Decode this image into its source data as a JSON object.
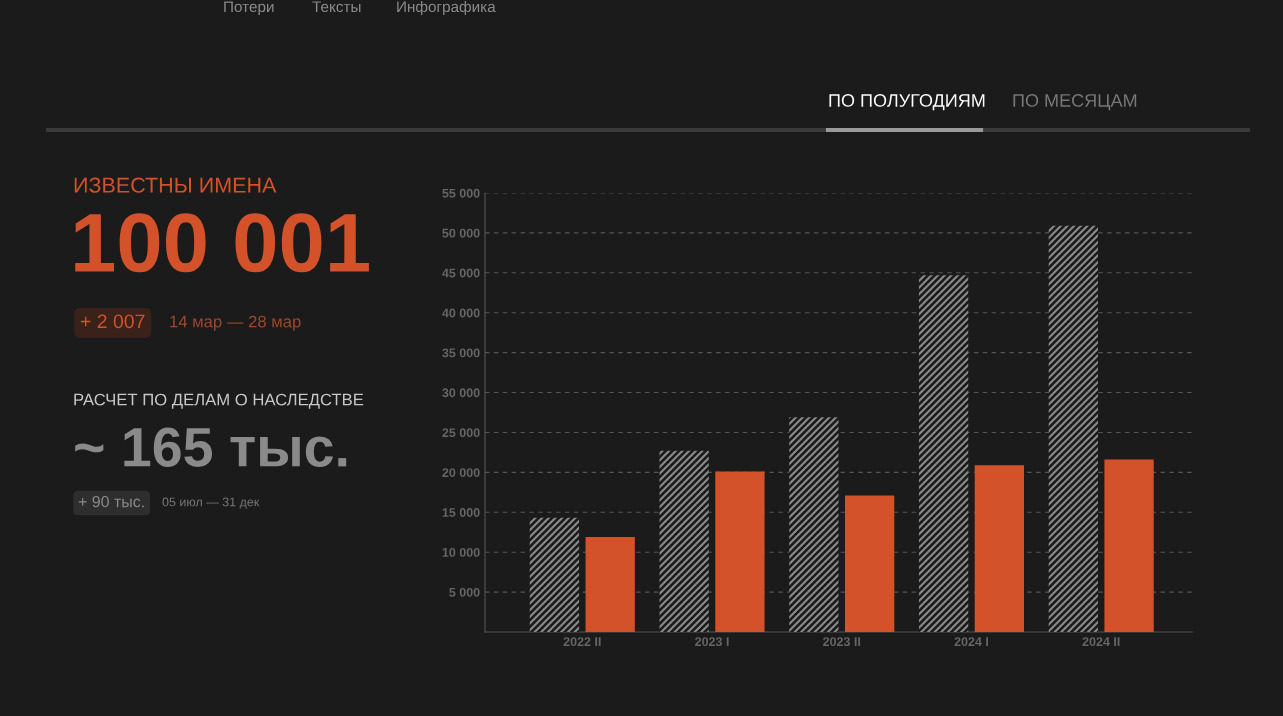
{
  "chart_data": {
    "type": "bar",
    "categories": [
      "2022 II",
      "2023 I",
      "2023 II",
      "2024 I",
      "2024 II"
    ],
    "series": [
      {
        "color": "#8a8a8a",
        "values": [
          14300,
          22700,
          26900,
          44700,
          50900
        ]
      },
      {
        "color": "#d4522a",
        "values": [
          11900,
          20100,
          17100,
          20900,
          21600
        ]
      }
    ],
    "ylim": [
      0,
      55000
    ],
    "yticks": [
      {
        "value": 5000,
        "label": "5 000"
      },
      {
        "value": 10000,
        "label": "10 000"
      },
      {
        "value": 15000,
        "label": "15 000"
      },
      {
        "value": 20000,
        "label": "20 000"
      },
      {
        "value": 25000,
        "label": "25 000"
      },
      {
        "value": 30000,
        "label": "30 000"
      },
      {
        "value": 35000,
        "label": "35 000"
      },
      {
        "value": 40000,
        "label": "40 000"
      },
      {
        "value": 45000,
        "label": "45 000"
      },
      {
        "value": 50000,
        "label": "50 000"
      },
      {
        "value": 55000,
        "label": "55 000"
      }
    ],
    "grid": "y",
    "legend": false,
    "annotations": [
      "Потери",
      "Тексты",
      "Инфографика",
      "ПО ПОЛУГОДИЯМ",
      "ПО МЕСЯЦАМ",
      "ИЗВЕСТНЫ ИМЕНА",
      "100 001",
      "+ 2 007",
      "14 мар — 28 мар",
      "РАСЧЕТ ПО ДЕЛАМ О НАСЛЕДСТВЕ",
      "~ 165 тыс.",
      "+ 90 тыс.",
      "05 июл — 31 дек"
    ]
  }
}
